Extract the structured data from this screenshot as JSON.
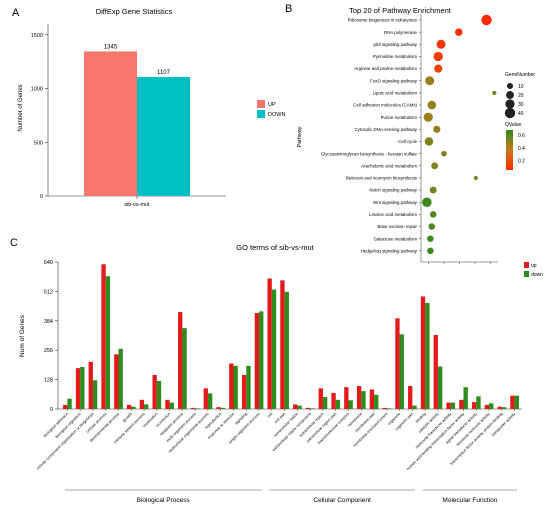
{
  "panels": {
    "a_letter": "A",
    "b_letter": "B",
    "c_letter": "C"
  },
  "chart_data": [
    {
      "type": "bar",
      "title": "DiffExp Gene Statistics",
      "xlabel": "",
      "ylabel": "Number of Genes",
      "categories": [
        "sib-vs-mut"
      ],
      "series": [
        {
          "name": "UP",
          "values": [
            1345
          ],
          "color": "#F8766D"
        },
        {
          "name": "DOWN",
          "values": [
            1107
          ],
          "color": "#00BFC4"
        }
      ],
      "data_labels": [
        "1345",
        "1107"
      ],
      "ylim": [
        0,
        1600
      ],
      "yticks": [
        0,
        500,
        1000,
        1500
      ],
      "grid": false,
      "legend": "center-right"
    },
    {
      "type": "scatter",
      "title": "Top 20 of Pathway Enrichment",
      "xlabel": "",
      "ylabel": "Pathway",
      "xlim": [
        0,
        1
      ],
      "pathways": [
        {
          "name": "Ribosome biogenesis in eukaryotes",
          "x": 0.88,
          "count": 40,
          "q": 0.02
        },
        {
          "name": "RNA polymerase",
          "x": 0.49,
          "count": 18,
          "q": 0.05
        },
        {
          "name": "p53 signaling pathway",
          "x": 0.24,
          "count": 28,
          "q": 0.07
        },
        {
          "name": "Pyrimidine metabolism",
          "x": 0.2,
          "count": 30,
          "q": 0.09
        },
        {
          "name": "Arginine and proline metabolism",
          "x": 0.2,
          "count": 22,
          "q": 0.12
        },
        {
          "name": "FoxO signaling pathway",
          "x": 0.08,
          "count": 28,
          "q": 0.45
        },
        {
          "name": "Lipoic acid metabolism",
          "x": 0.99,
          "count": 3,
          "q": 0.55
        },
        {
          "name": "Cell adhesion molecules (CAMs)",
          "x": 0.11,
          "count": 25,
          "q": 0.45
        },
        {
          "name": "Purine metabolism",
          "x": 0.06,
          "count": 30,
          "q": 0.45
        },
        {
          "name": "Cytosolic DNA-sensing pathway",
          "x": 0.18,
          "count": 16,
          "q": 0.45
        },
        {
          "name": "Cell cycle",
          "x": 0.07,
          "count": 24,
          "q": 0.5
        },
        {
          "name": "Glycosaminoglycan biosynthesis - keratan sulfate",
          "x": 0.28,
          "count": 8,
          "q": 0.5
        },
        {
          "name": "Arachidonic acid metabolism",
          "x": 0.15,
          "count": 14,
          "q": 0.5
        },
        {
          "name": "Butirosin and neomycin biosynthesis",
          "x": 0.73,
          "count": 3,
          "q": 0.55
        },
        {
          "name": "Notch signaling pathway",
          "x": 0.13,
          "count": 14,
          "q": 0.55
        },
        {
          "name": "Wnt signaling pathway",
          "x": 0.04,
          "count": 32,
          "q": 0.65
        },
        {
          "name": "Linoleic acid metabolism",
          "x": 0.13,
          "count": 12,
          "q": 0.6
        },
        {
          "name": "Base excision repair",
          "x": 0.11,
          "count": 12,
          "q": 0.6
        },
        {
          "name": "Galactose metabolism",
          "x": 0.09,
          "count": 12,
          "q": 0.65
        },
        {
          "name": "Hedgehog signaling pathway",
          "x": 0.09,
          "count": 12,
          "q": 0.65
        }
      ],
      "size_legend": {
        "title": "GeneNumber",
        "values": [
          10,
          20,
          30,
          40
        ]
      },
      "color_legend": {
        "title": "QValue",
        "ticks": [
          0.6,
          0.4,
          0.2
        ],
        "low_color": "#FF2A00",
        "high_color": "#2E8B1E"
      },
      "grid": false,
      "legend": "right"
    },
    {
      "type": "bar",
      "title": "GO terms of sib-vs-mut",
      "xlabel": "",
      "ylabel": "Num of Genes",
      "ylim": [
        0,
        640
      ],
      "yticks": [
        0,
        128,
        256,
        384,
        512,
        640
      ],
      "series": [
        {
          "name": "up",
          "color": "#E31A1C"
        },
        {
          "name": "down",
          "color": "#2E8B1E"
        }
      ],
      "legend": "top-right",
      "groups": [
        {
          "name": "Biological Process",
          "categories": [
            {
              "label": "biological adhesion",
              "up": 18,
              "down": 45
            },
            {
              "label": "biological regulation",
              "up": 178,
              "down": 183
            },
            {
              "label": "cellular component organization or biogenesis",
              "up": 205,
              "down": 125
            },
            {
              "label": "cellular process",
              "up": 630,
              "down": 578
            },
            {
              "label": "developmental process",
              "up": 238,
              "down": 262
            },
            {
              "label": "growth",
              "up": 18,
              "down": 10
            },
            {
              "label": "immune system process",
              "up": 40,
              "down": 20
            },
            {
              "label": "localization",
              "up": 148,
              "down": 122
            },
            {
              "label": "locomotion",
              "up": 40,
              "down": 28
            },
            {
              "label": "metabolic process",
              "up": 422,
              "down": 352
            },
            {
              "label": "multi-organism process",
              "up": 5,
              "down": 3
            },
            {
              "label": "multicellular organismal process",
              "up": 90,
              "down": 68
            },
            {
              "label": "reproduction",
              "up": 8,
              "down": 5
            },
            {
              "label": "response to stimulus",
              "up": 198,
              "down": 188
            },
            {
              "label": "signaling",
              "up": 148,
              "down": 188
            },
            {
              "label": "single-organism process",
              "up": 418,
              "down": 425
            }
          ]
        },
        {
          "name": "Cellular Component",
          "categories": [
            {
              "label": "cell",
              "up": 568,
              "down": 520
            },
            {
              "label": "cell part",
              "up": 560,
              "down": 510
            },
            {
              "label": "extracellular matrix",
              "up": 20,
              "down": 15
            },
            {
              "label": "extracellular matrix component",
              "up": 5,
              "down": 3
            },
            {
              "label": "extracellular region",
              "up": 90,
              "down": 52
            },
            {
              "label": "extracellular region part",
              "up": 70,
              "down": 40
            },
            {
              "label": "macromolecular complex",
              "up": 95,
              "down": 38
            },
            {
              "label": "membrane",
              "up": 100,
              "down": 78
            },
            {
              "label": "membrane part",
              "up": 85,
              "down": 62
            },
            {
              "label": "membrane-enclosed lumen",
              "up": 5,
              "down": 3
            },
            {
              "label": "organelle",
              "up": 395,
              "down": 325
            },
            {
              "label": "organelle part",
              "up": 100,
              "down": 15
            }
          ]
        },
        {
          "name": "Molecular Function",
          "categories": [
            {
              "label": "binding",
              "up": 490,
              "down": 462
            },
            {
              "label": "catalytic activity",
              "up": 322,
              "down": 185
            },
            {
              "label": "molecular transducer activity",
              "up": 28,
              "down": 28
            },
            {
              "label": "nucleic acid binding transcription factor activity",
              "up": 40,
              "down": 95
            },
            {
              "label": "signal transducer activity",
              "up": 30,
              "down": 55
            },
            {
              "label": "structural molecule activity",
              "up": 18,
              "down": 25
            },
            {
              "label": "transcription factor activity, protein binding",
              "up": 10,
              "down": 8
            },
            {
              "label": "transporter activity",
              "up": 58,
              "down": 58
            }
          ]
        }
      ]
    }
  ]
}
